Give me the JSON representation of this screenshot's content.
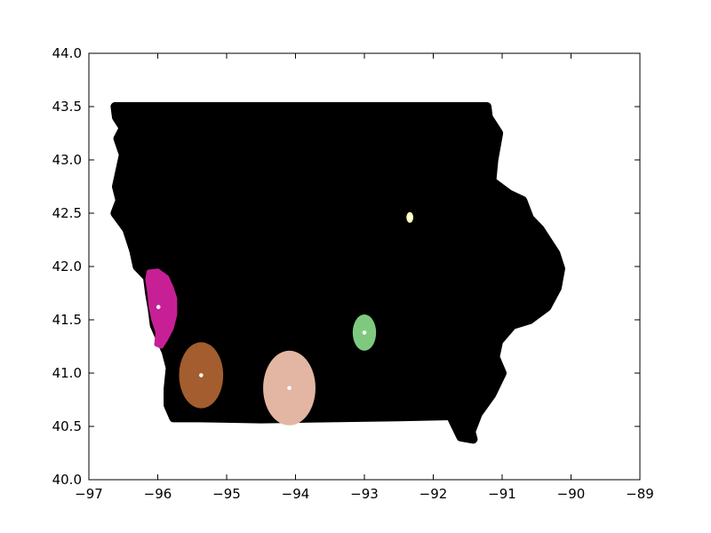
{
  "chart_data": {
    "type": "scatter",
    "title": "",
    "xlabel": "",
    "ylabel": "",
    "xlim": [
      -97,
      -89
    ],
    "ylim": [
      40.0,
      44.0
    ],
    "grid": false,
    "x_ticks": [
      "−97",
      "−96",
      "−95",
      "−94",
      "−93",
      "−92",
      "−91",
      "−90",
      "−89"
    ],
    "y_ticks": [
      "40.0",
      "40.5",
      "41.0",
      "41.5",
      "42.0",
      "42.5",
      "43.0",
      "43.5",
      "44.0"
    ],
    "background_region": {
      "color": "#000000",
      "outline": [
        [
          -96.62,
          43.5
        ],
        [
          -95.5,
          43.5
        ],
        [
          -94.5,
          43.5
        ],
        [
          -93.5,
          43.5
        ],
        [
          -92.5,
          43.5
        ],
        [
          -91.22,
          43.5
        ],
        [
          -91.2,
          43.4
        ],
        [
          -91.05,
          43.25
        ],
        [
          -91.12,
          43.0
        ],
        [
          -91.15,
          42.8
        ],
        [
          -90.9,
          42.68
        ],
        [
          -90.7,
          42.62
        ],
        [
          -90.6,
          42.45
        ],
        [
          -90.45,
          42.35
        ],
        [
          -90.3,
          42.2
        ],
        [
          -90.22,
          42.12
        ],
        [
          -90.15,
          41.98
        ],
        [
          -90.2,
          41.8
        ],
        [
          -90.35,
          41.62
        ],
        [
          -90.6,
          41.5
        ],
        [
          -90.85,
          41.45
        ],
        [
          -91.05,
          41.3
        ],
        [
          -91.1,
          41.15
        ],
        [
          -91.0,
          41.0
        ],
        [
          -91.15,
          40.8
        ],
        [
          -91.35,
          40.62
        ],
        [
          -91.45,
          40.45
        ],
        [
          -91.42,
          40.38
        ],
        [
          -91.6,
          40.4
        ],
        [
          -91.75,
          40.6
        ],
        [
          -92.5,
          40.59
        ],
        [
          -93.5,
          40.58
        ],
        [
          -94.5,
          40.57
        ],
        [
          -95.4,
          40.58
        ],
        [
          -95.77,
          40.58
        ],
        [
          -95.85,
          40.7
        ],
        [
          -95.85,
          40.85
        ],
        [
          -95.82,
          41.05
        ],
        [
          -95.88,
          41.2
        ],
        [
          -95.95,
          41.3
        ],
        [
          -96.05,
          41.45
        ],
        [
          -96.08,
          41.6
        ],
        [
          -96.12,
          41.75
        ],
        [
          -96.15,
          41.9
        ],
        [
          -96.3,
          42.0
        ],
        [
          -96.35,
          42.15
        ],
        [
          -96.45,
          42.35
        ],
        [
          -96.62,
          42.5
        ],
        [
          -96.55,
          42.62
        ],
        [
          -96.6,
          42.75
        ],
        [
          -96.55,
          42.9
        ],
        [
          -96.5,
          43.05
        ],
        [
          -96.58,
          43.2
        ],
        [
          -96.5,
          43.3
        ],
        [
          -96.6,
          43.4
        ]
      ]
    },
    "clusters": [
      {
        "color": "#C71F96",
        "center": [
          -95.99,
          41.62
        ],
        "shape": [
          [
            -96.13,
            41.95
          ],
          [
            -96.0,
            41.96
          ],
          [
            -95.87,
            41.9
          ],
          [
            -95.8,
            41.8
          ],
          [
            -95.75,
            41.7
          ],
          [
            -95.75,
            41.55
          ],
          [
            -95.8,
            41.42
          ],
          [
            -95.88,
            41.32
          ],
          [
            -95.95,
            41.25
          ],
          [
            -96.02,
            41.27
          ],
          [
            -96.0,
            41.38
          ],
          [
            -96.06,
            41.5
          ],
          [
            -96.1,
            41.62
          ],
          [
            -96.12,
            41.75
          ],
          [
            -96.15,
            41.88
          ]
        ]
      },
      {
        "color": "#A35D2E",
        "center": [
          -95.37,
          40.98
        ],
        "rx": 0.32,
        "ry": 0.31
      },
      {
        "color": "#E2B6A2",
        "center": [
          -94.09,
          40.86
        ],
        "rx": 0.38,
        "ry": 0.35
      },
      {
        "color": "#7FC97F",
        "center": [
          -93.0,
          41.38
        ],
        "rx": 0.17,
        "ry": 0.17
      },
      {
        "color": "#FFFFB3",
        "center": [
          -92.34,
          42.46
        ],
        "rx": 0.05,
        "ry": 0.05
      }
    ]
  }
}
